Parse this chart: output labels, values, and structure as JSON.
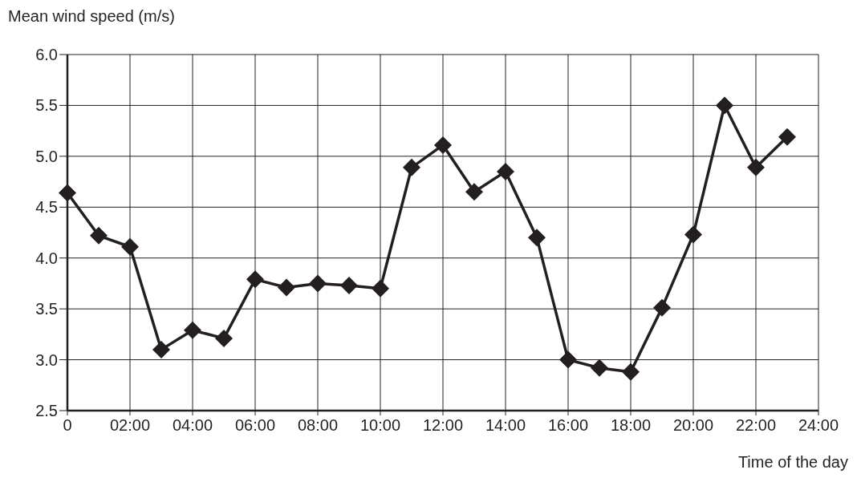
{
  "chart_data": {
    "type": "line",
    "xlabel": "Time of the day",
    "ylabel": "Mean wind speed (m/s)",
    "x": [
      0,
      1,
      2,
      3,
      4,
      5,
      6,
      7,
      8,
      9,
      10,
      11,
      12,
      13,
      14,
      15,
      16,
      17,
      18,
      19,
      20,
      21,
      22,
      23
    ],
    "series": [
      {
        "color": "#231f20",
        "values": [
          4.64,
          4.22,
          4.11,
          3.1,
          3.29,
          3.21,
          3.79,
          3.71,
          3.75,
          3.73,
          3.7,
          4.89,
          5.11,
          4.65,
          4.85,
          4.2,
          3.0,
          2.92,
          2.88,
          3.51,
          4.23,
          5.5,
          4.89,
          5.19
        ]
      }
    ],
    "xlim": [
      0,
      24
    ],
    "xticks": [
      0,
      {
        "value": 2,
        "label": "02:00"
      },
      {
        "value": 4,
        "label": "04:00"
      },
      {
        "value": 6,
        "label": "06:00"
      },
      {
        "value": 8,
        "label": "08:00"
      },
      {
        "value": 10,
        "label": "10:00"
      },
      {
        "value": 12,
        "label": "12:00"
      },
      {
        "value": 14,
        "label": "14:00"
      },
      {
        "value": 16,
        "label": "16:00"
      },
      {
        "value": 18,
        "label": "18:00"
      },
      {
        "value": 20,
        "label": "20:00"
      },
      {
        "value": 22,
        "label": "22:00"
      },
      {
        "value": 24,
        "label": "24:00"
      }
    ],
    "ylim": [
      2.5,
      6.0
    ],
    "yticks": [
      {
        "value": 2.5,
        "label": "2.5"
      },
      {
        "value": 3,
        "label": "3.0"
      },
      {
        "value": 3.5,
        "label": "3.5"
      },
      {
        "value": 4,
        "label": "4.0"
      },
      {
        "value": 4.5,
        "label": "4.5"
      },
      {
        "value": 5,
        "label": "5.0"
      },
      {
        "value": 5.5,
        "label": "5.5"
      },
      {
        "value": 6,
        "label": "6.0"
      }
    ],
    "grid": true,
    "marker": "diamond",
    "line_style": "solid"
  }
}
